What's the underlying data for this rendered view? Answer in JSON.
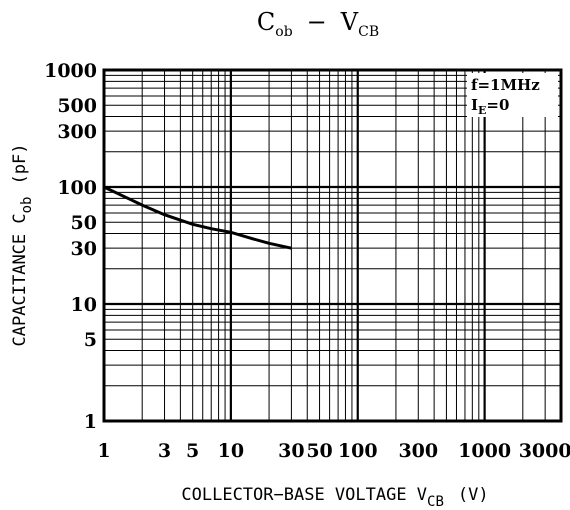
{
  "chart_data": {
    "type": "line",
    "title": {
      "main": "C",
      "main_sub": "ob",
      "dash": "−",
      "second": "V",
      "second_sub": "CB"
    },
    "xlabel": {
      "text": "COLLECTOR−BASE VOLTAGE V",
      "sub": "CB",
      "unit": "(V)"
    },
    "ylabel": {
      "text": "CAPACITANCE C",
      "sub": "ob",
      "unit": "(pF)"
    },
    "x_scale": "log",
    "y_scale": "log",
    "xlim": [
      1,
      4000
    ],
    "ylim": [
      1,
      1000
    ],
    "x_ticks": [
      {
        "value": 1,
        "label": "1"
      },
      {
        "value": 3,
        "label": "3"
      },
      {
        "value": 5,
        "label": "5"
      },
      {
        "value": 10,
        "label": "10"
      },
      {
        "value": 30,
        "label": "30"
      },
      {
        "value": 50,
        "label": "50"
      },
      {
        "value": 100,
        "label": "100"
      },
      {
        "value": 300,
        "label": "300"
      },
      {
        "value": 1000,
        "label": "1000"
      },
      {
        "value": 3000,
        "label": "3000"
      }
    ],
    "y_ticks": [
      {
        "value": 1,
        "label": "1"
      },
      {
        "value": 5,
        "label": "5"
      },
      {
        "value": 10,
        "label": "10"
      },
      {
        "value": 30,
        "label": "30"
      },
      {
        "value": 50,
        "label": "50"
      },
      {
        "value": 100,
        "label": "100"
      },
      {
        "value": 300,
        "label": "300"
      },
      {
        "value": 500,
        "label": "500"
      },
      {
        "value": 1000,
        "label": "1000"
      }
    ],
    "grid": true,
    "annotation": {
      "line1": "f=1MHz",
      "line2_main": "I",
      "line2_sub": "E",
      "line2_rest": "=0"
    },
    "series": [
      {
        "x": [
          1,
          2,
          3,
          5,
          7,
          10,
          15,
          20,
          30
        ],
        "y": [
          100,
          70,
          58,
          48,
          44,
          41,
          36,
          33,
          30
        ]
      }
    ]
  }
}
